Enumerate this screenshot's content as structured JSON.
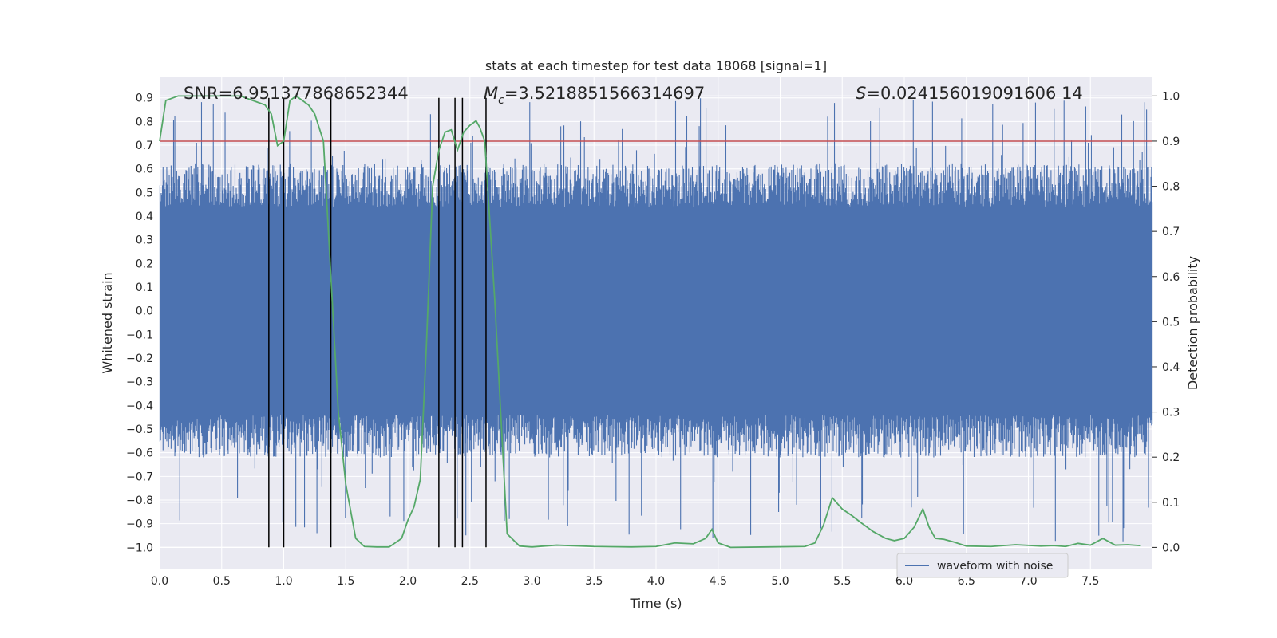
{
  "chart_data": {
    "type": "line",
    "title": "stats at each timestep for test data 18068 [signal=1]",
    "xlabel": "Time (s)",
    "ylabel": "Whitened strain",
    "y2label": "Detection probability",
    "xlim": [
      0.0,
      8.0
    ],
    "ylim": [
      -1.09,
      0.99
    ],
    "y2lim": [
      -0.047,
      1.043
    ],
    "x_ticks": [
      0.0,
      0.5,
      1.0,
      1.5,
      2.0,
      2.5,
      3.0,
      3.5,
      4.0,
      4.5,
      5.0,
      5.5,
      6.0,
      6.5,
      7.0,
      7.5
    ],
    "y_ticks": [
      -1.0,
      -0.9,
      -0.8,
      -0.7,
      -0.6,
      -0.5,
      -0.4,
      -0.3,
      -0.2,
      -0.1,
      0.0,
      0.1,
      0.2,
      0.3,
      0.4,
      0.5,
      0.6,
      0.7,
      0.8,
      0.9
    ],
    "y2_ticks": [
      0.0,
      0.1,
      0.2,
      0.3,
      0.4,
      0.5,
      0.6,
      0.7,
      0.8,
      0.9,
      1.0
    ],
    "grid": true,
    "legend_position": "lower-right",
    "annotations": {
      "snr": "SNR=6.951377868652344",
      "mc_symbol": "M",
      "mc_sub": "c",
      "mc_value": "=3.5218851566314697",
      "s_symbol": "S",
      "s_value": "=0.024156019091606 14"
    },
    "series": [
      {
        "name": "waveform with noise",
        "axis": "left",
        "color": "#4c72b0",
        "kind": "noise",
        "core_band": [
          -0.44,
          0.44
        ],
        "typical_peak": 0.62,
        "max_peak": 0.9,
        "min_peak": -0.98
      },
      {
        "axis": "right",
        "color": "#55a868",
        "kind": "probability",
        "x": [
          0.0,
          0.05,
          0.15,
          0.3,
          0.5,
          0.65,
          0.75,
          0.85,
          0.9,
          0.95,
          1.0,
          1.05,
          1.1,
          1.15,
          1.2,
          1.25,
          1.32,
          1.38,
          1.44,
          1.5,
          1.58,
          1.65,
          1.75,
          1.85,
          1.95,
          2.0,
          2.05,
          2.1,
          2.15,
          2.2,
          2.25,
          2.3,
          2.35,
          2.4,
          2.45,
          2.5,
          2.55,
          2.58,
          2.62,
          2.7,
          2.8,
          2.9,
          3.0,
          3.2,
          3.5,
          3.8,
          4.0,
          4.15,
          4.3,
          4.4,
          4.45,
          4.5,
          4.6,
          4.9,
          5.2,
          5.28,
          5.35,
          5.42,
          5.5,
          5.58,
          5.65,
          5.75,
          5.85,
          5.92,
          6.0,
          6.08,
          6.15,
          6.2,
          6.25,
          6.32,
          6.4,
          6.5,
          6.7,
          6.9,
          7.1,
          7.2,
          7.3,
          7.4,
          7.5,
          7.6,
          7.7,
          7.8,
          7.9
        ],
        "y": [
          0.9,
          0.99,
          1.0,
          1.0,
          1.0,
          1.0,
          0.99,
          0.98,
          0.96,
          0.89,
          0.9,
          0.99,
          1.0,
          0.99,
          0.98,
          0.96,
          0.9,
          0.6,
          0.3,
          0.14,
          0.02,
          0.002,
          0.001,
          0.001,
          0.02,
          0.06,
          0.09,
          0.15,
          0.45,
          0.8,
          0.88,
          0.92,
          0.925,
          0.88,
          0.92,
          0.935,
          0.945,
          0.93,
          0.9,
          0.55,
          0.03,
          0.003,
          0.001,
          0.005,
          0.002,
          0.001,
          0.002,
          0.01,
          0.008,
          0.02,
          0.04,
          0.01,
          0.0,
          0.001,
          0.002,
          0.01,
          0.05,
          0.11,
          0.085,
          0.07,
          0.055,
          0.035,
          0.02,
          0.015,
          0.02,
          0.045,
          0.085,
          0.045,
          0.02,
          0.018,
          0.012,
          0.003,
          0.002,
          0.006,
          0.003,
          0.004,
          0.002,
          0.009,
          0.005,
          0.02,
          0.005,
          0.006,
          0.004
        ]
      }
    ],
    "threshold": {
      "axis": "right",
      "value": 0.9,
      "color": "#c44e52"
    },
    "vlines": {
      "x": [
        0.88,
        1.0,
        1.38,
        2.25,
        2.38,
        2.44,
        2.63
      ],
      "color": "#000000",
      "y_from": -1.0,
      "y_to": 0.9
    }
  }
}
